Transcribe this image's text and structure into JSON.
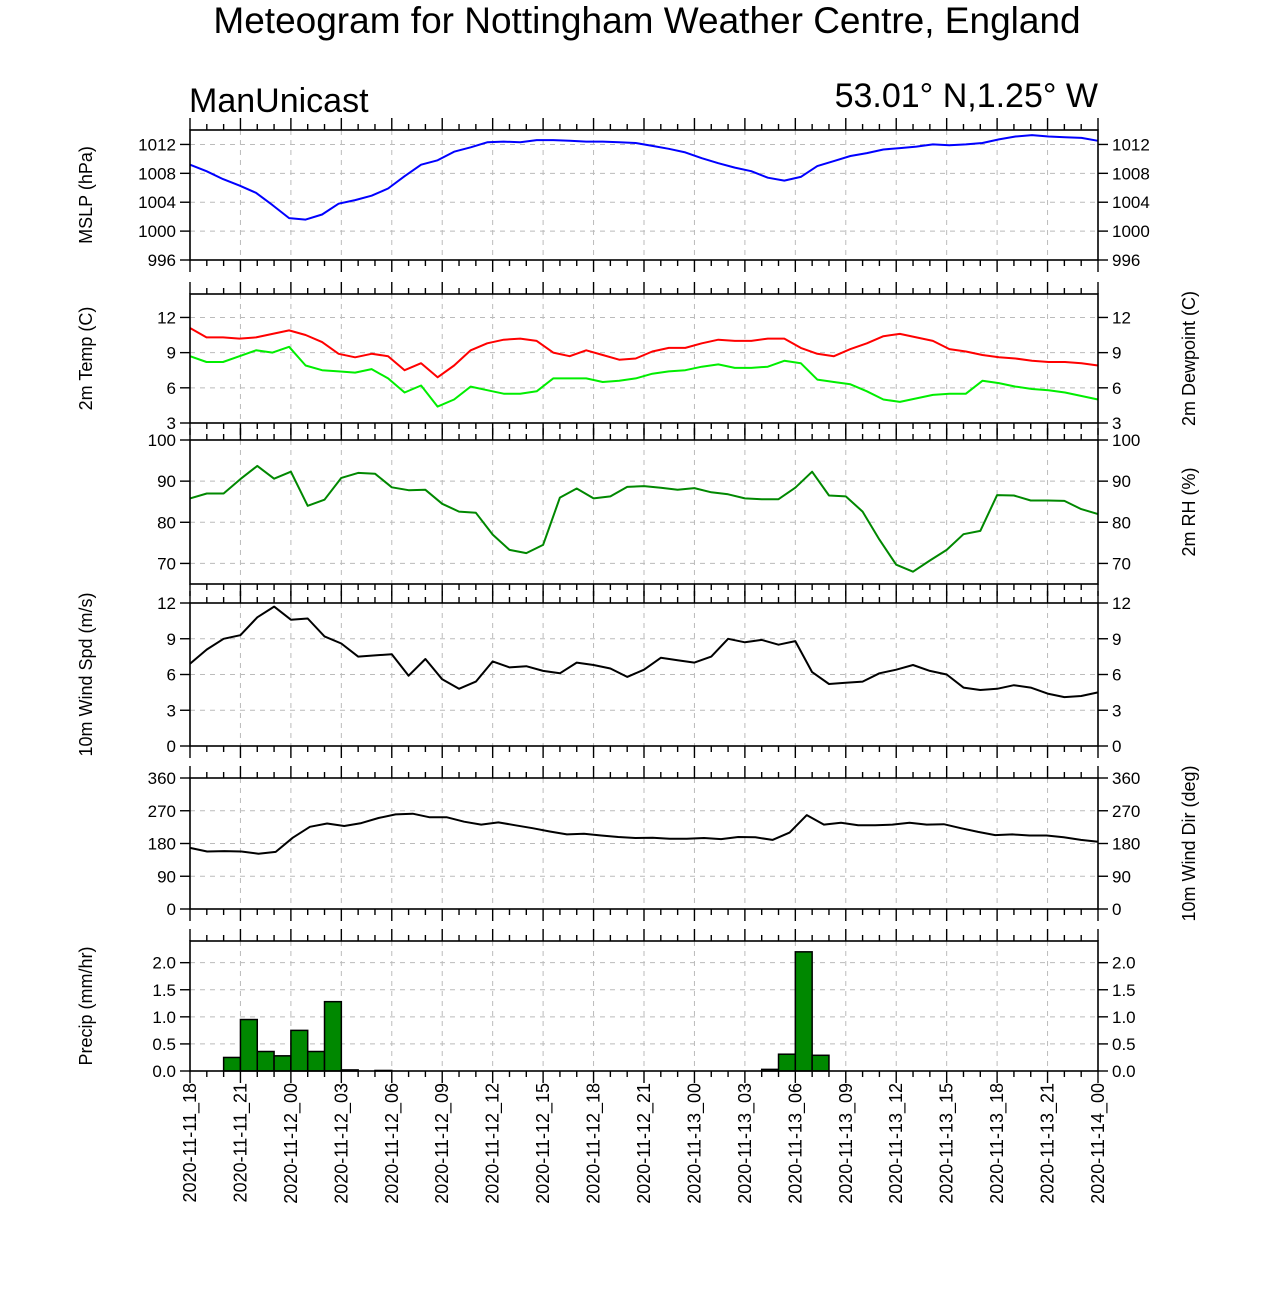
{
  "title": "Meteogram for Nottingham Weather Centre, England",
  "left_subtitle": "ManUnicast",
  "right_subtitle": "53.01° N,1.25° W",
  "colors": {
    "mslp": "#0000ff",
    "temp": "#ff0000",
    "dewpoint": "#00ee00",
    "rh": "#008800",
    "wind": "#000000",
    "precip_fill": "#008800"
  },
  "chart_data": [
    {
      "type": "line",
      "ylabel_left": "MSLP (hPa)",
      "ylabel_right": "",
      "ylim": [
        996,
        1014
      ],
      "yticks": [
        996,
        1000,
        1004,
        1008,
        1012
      ],
      "series": [
        {
          "values": [
            1009.2,
            1008.3,
            1007.2,
            1006.3,
            1005.3,
            1003.6,
            1001.8,
            1001.6,
            1002.3,
            1003.8,
            1004.3,
            1004.9,
            1005.9,
            1007.6,
            1009.2,
            1009.8,
            1011.0,
            1011.6,
            1012.3,
            1012.4,
            1012.3,
            1012.6,
            1012.6,
            1012.5,
            1012.4,
            1012.4,
            1012.3,
            1012.2,
            1011.8,
            1011.4,
            1010.9,
            1010.1,
            1009.4,
            1008.8,
            1008.3,
            1007.4,
            1007.0,
            1007.5,
            1009.0,
            1009.7,
            1010.4,
            1010.8,
            1011.3,
            1011.5,
            1011.7,
            1012.0,
            1011.9,
            1012.0,
            1012.2,
            1012.7,
            1013.1,
            1013.3,
            1013.1,
            1013.0,
            1012.9,
            1012.5
          ]
        }
      ]
    },
    {
      "type": "line",
      "ylabel_left": "2m Temp (C)",
      "ylabel_right": "2m Dewpoint (C)",
      "ylim": [
        3,
        14
      ],
      "yticks": [
        3,
        6,
        9,
        12
      ],
      "series": [
        {
          "values": [
            11.1,
            10.3,
            10.3,
            10.2,
            10.3,
            10.6,
            10.9,
            10.5,
            9.9,
            8.9,
            8.6,
            8.9,
            8.7,
            7.5,
            8.1,
            6.9,
            7.9,
            9.2,
            9.8,
            10.1,
            10.2,
            10.0,
            9.0,
            8.7,
            9.2,
            8.8,
            8.4,
            8.5,
            9.1,
            9.4,
            9.4,
            9.8,
            10.1,
            10.0,
            10.0,
            10.2,
            10.2,
            9.4,
            8.9,
            8.7,
            9.3,
            9.8,
            10.4,
            10.6,
            10.3,
            10.0,
            9.3,
            9.1,
            8.8,
            8.6,
            8.5,
            8.3,
            8.2,
            8.2,
            8.1,
            7.9
          ]
        },
        {
          "values": [
            8.7,
            8.2,
            8.2,
            8.7,
            9.2,
            9.0,
            9.5,
            7.9,
            7.5,
            7.4,
            7.3,
            7.6,
            6.8,
            5.6,
            6.2,
            4.4,
            5.0,
            6.1,
            5.8,
            5.5,
            5.5,
            5.7,
            6.8,
            6.8,
            6.8,
            6.5,
            6.6,
            6.8,
            7.2,
            7.4,
            7.5,
            7.8,
            8.0,
            7.7,
            7.7,
            7.8,
            8.3,
            8.1,
            6.7,
            6.5,
            6.3,
            5.7,
            5.0,
            4.8,
            5.1,
            5.4,
            5.5,
            5.5,
            6.6,
            6.4,
            6.1,
            5.9,
            5.8,
            5.6,
            5.3,
            5.0
          ]
        }
      ]
    },
    {
      "type": "line",
      "ylabel_left": "",
      "ylabel_right": "2m RH (%)",
      "ylim": [
        65,
        100
      ],
      "yticks": [
        70,
        80,
        90,
        100
      ],
      "series": [
        {
          "values": [
            85.8,
            87.0,
            87.0,
            90.5,
            93.7,
            90.6,
            92.3,
            84.0,
            85.5,
            90.8,
            92.0,
            91.8,
            88.5,
            87.8,
            87.9,
            84.5,
            82.6,
            82.3,
            77.0,
            73.3,
            72.5,
            74.5,
            86.0,
            88.2,
            85.8,
            86.3,
            88.6,
            88.8,
            88.4,
            87.9,
            88.3,
            87.3,
            86.8,
            85.8,
            85.6,
            85.6,
            88.4,
            92.3,
            86.5,
            86.3,
            82.6,
            75.8,
            69.7,
            68.0,
            70.7,
            73.3,
            77.1,
            77.9,
            86.6,
            86.5,
            85.3,
            85.3,
            85.2,
            83.2,
            82.0
          ]
        }
      ]
    },
    {
      "type": "line",
      "ylabel_left": "10m Wind Spd (m/s)",
      "ylabel_right": "",
      "ylim": [
        0,
        12
      ],
      "yticks": [
        0,
        3,
        6,
        9,
        12
      ],
      "series": [
        {
          "values": [
            6.9,
            8.1,
            9.0,
            9.3,
            10.8,
            11.7,
            10.6,
            10.7,
            9.2,
            8.6,
            7.5,
            7.6,
            7.7,
            5.9,
            7.3,
            5.6,
            4.8,
            5.4,
            7.1,
            6.6,
            6.7,
            6.3,
            6.1,
            7.0,
            6.8,
            6.5,
            5.8,
            6.4,
            7.4,
            7.2,
            7.0,
            7.5,
            9.0,
            8.7,
            8.9,
            8.5,
            8.8,
            6.2,
            5.2,
            5.3,
            5.4,
            6.1,
            6.4,
            6.8,
            6.3,
            6.0,
            4.9,
            4.7,
            4.8,
            5.1,
            4.9,
            4.4,
            4.1,
            4.2,
            4.5
          ]
        }
      ]
    },
    {
      "type": "line",
      "ylabel_left": "",
      "ylabel_right": "10m Wind Dir (deg)",
      "ylim": [
        0,
        360
      ],
      "yticks": [
        0,
        90,
        180,
        270,
        360
      ],
      "series": [
        {
          "values": [
            168,
            158,
            159,
            158,
            152,
            157,
            196,
            226,
            235,
            228,
            236,
            250,
            260,
            262,
            252,
            252,
            240,
            232,
            238,
            230,
            222,
            213,
            205,
            207,
            202,
            198,
            195,
            196,
            193,
            193,
            195,
            192,
            198,
            197,
            190,
            210,
            258,
            232,
            237,
            230,
            230,
            232,
            237,
            232,
            233,
            222,
            212,
            203,
            205,
            202,
            202,
            197,
            190,
            185
          ]
        }
      ]
    },
    {
      "type": "bar",
      "ylabel_left": "Precip (mm/hr)",
      "ylabel_right": "",
      "ylim": [
        0,
        2.4
      ],
      "yticks": [
        0.0,
        0.5,
        1.0,
        1.5,
        2.0
      ],
      "ytick_labels": [
        "0.0",
        "0.5",
        "1.0",
        "1.5",
        "2.0"
      ],
      "series": [
        {
          "values": [
            0,
            0,
            0.25,
            0.95,
            0.36,
            0.28,
            0.75,
            0.36,
            1.28,
            0.02,
            0,
            0.01,
            0,
            0,
            0,
            0,
            0,
            0,
            0,
            0,
            0,
            0,
            0,
            0,
            0,
            0,
            0,
            0,
            0,
            0,
            0,
            0,
            0,
            0,
            0.03,
            0.31,
            2.2,
            0.29,
            0,
            0,
            0,
            0,
            0,
            0,
            0,
            0,
            0,
            0,
            0,
            0,
            0,
            0,
            0,
            0
          ]
        }
      ]
    }
  ],
  "x_axis": {
    "categories": [
      "2020-11-11_18",
      "2020-11-11_21",
      "2020-11-12_00",
      "2020-11-12_03",
      "2020-11-12_06",
      "2020-11-12_09",
      "2020-11-12_12",
      "2020-11-12_15",
      "2020-11-12_18",
      "2020-11-12_21",
      "2020-11-13_00",
      "2020-11-13_03",
      "2020-11-13_06",
      "2020-11-13_09",
      "2020-11-13_12",
      "2020-11-13_15",
      "2020-11-13_18",
      "2020-11-13_21",
      "2020-11-14_00"
    ]
  }
}
